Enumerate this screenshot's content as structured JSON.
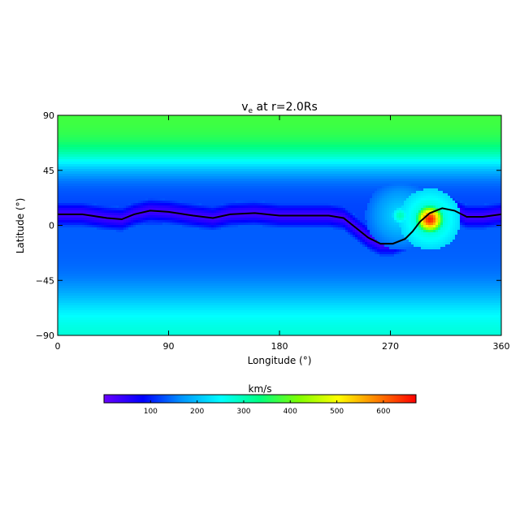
{
  "chart_data": {
    "type": "heatmap",
    "title": "v",
    "title_subscript": "e",
    "title_rest": " at r=2.0Rs",
    "xlabel": "Longitude (°)",
    "ylabel": "Latitude (°)",
    "xlim": [
      0,
      360
    ],
    "ylim": [
      -90,
      90
    ],
    "xticks": [
      0,
      90,
      180,
      270,
      360
    ],
    "yticks": [
      -90,
      -45,
      0,
      45,
      90
    ],
    "xtick_labels": [
      "0",
      "90",
      "180",
      "270",
      "360"
    ],
    "ytick_labels": [
      "−90",
      "−45",
      "0",
      "45",
      "90"
    ],
    "colorbar": {
      "label": "km/s",
      "range": [
        0,
        670
      ],
      "ticks": [
        100,
        200,
        300,
        400,
        500,
        600
      ],
      "tick_labels": [
        "100",
        "200",
        "300",
        "400",
        "500",
        "600"
      ],
      "colormap": "rainbow",
      "colors": [
        "#6a00ff",
        "#0000ff",
        "#0096ff",
        "#00ffff",
        "#00ff80",
        "#80ff00",
        "#ffff00",
        "#ff8000",
        "#ff0000"
      ]
    },
    "neutral_line": {
      "color": "#000000",
      "points": [
        [
          0,
          9
        ],
        [
          20,
          9
        ],
        [
          40,
          6
        ],
        [
          52,
          5
        ],
        [
          62,
          9
        ],
        [
          75,
          12
        ],
        [
          90,
          11
        ],
        [
          110,
          8
        ],
        [
          126,
          6
        ],
        [
          140,
          9
        ],
        [
          160,
          10
        ],
        [
          180,
          8
        ],
        [
          200,
          8
        ],
        [
          220,
          8
        ],
        [
          232,
          6
        ],
        [
          242,
          -2
        ],
        [
          252,
          -10
        ],
        [
          262,
          -15
        ],
        [
          272,
          -15
        ],
        [
          282,
          -11
        ],
        [
          288,
          -5
        ],
        [
          294,
          3
        ],
        [
          302,
          10
        ],
        [
          312,
          14
        ],
        [
          322,
          12
        ],
        [
          332,
          7
        ],
        [
          345,
          7
        ],
        [
          360,
          9
        ]
      ]
    },
    "features": [
      {
        "kind": "fast_region",
        "center": [
          302,
          5
        ],
        "peak_kms": 650
      },
      {
        "kind": "fast_region",
        "center": [
          278,
          8
        ],
        "peak_kms": 300
      }
    ]
  }
}
